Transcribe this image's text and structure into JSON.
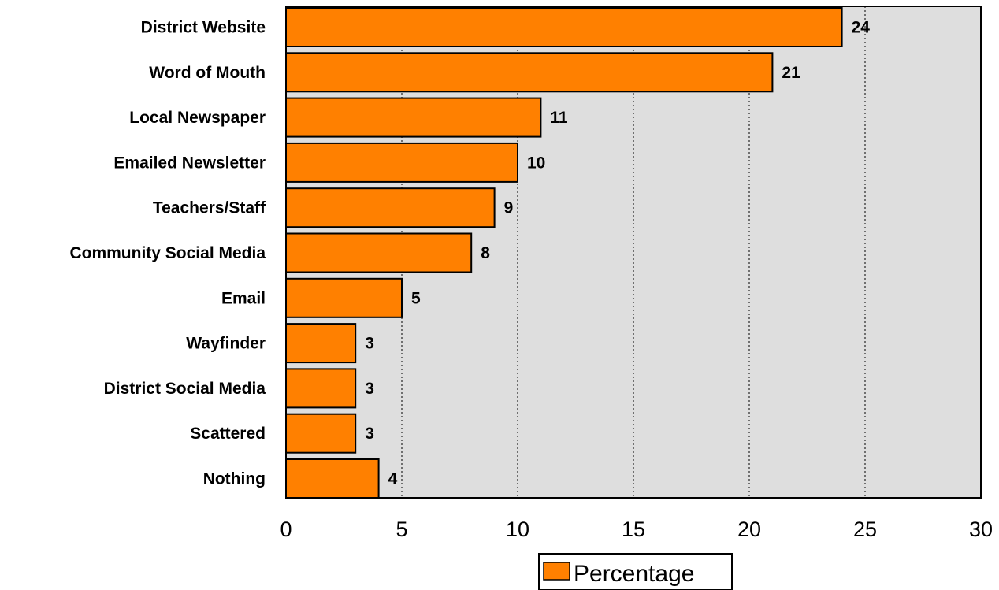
{
  "chart_data": {
    "type": "bar",
    "orientation": "horizontal",
    "categories": [
      "District Website",
      "Word of Mouth",
      "Local Newspaper",
      "Emailed Newsletter",
      "Teachers/Staff",
      "Community Social Media",
      "Email",
      "Wayfinder",
      "District Social Media",
      "Scattered",
      "Nothing"
    ],
    "series": [
      {
        "name": "Percentage",
        "values": [
          24,
          21,
          11,
          10,
          9,
          8,
          5,
          3,
          3,
          3,
          4
        ]
      }
    ],
    "xlim": [
      0,
      30
    ],
    "xticks": [
      0,
      5,
      10,
      15,
      20,
      25,
      30
    ],
    "grid": "vertical dotted",
    "legend": "bottom-center",
    "colors": {
      "bar": "#ff8000",
      "plot_bg": "#dedede",
      "bar_stroke": "#000000"
    }
  }
}
